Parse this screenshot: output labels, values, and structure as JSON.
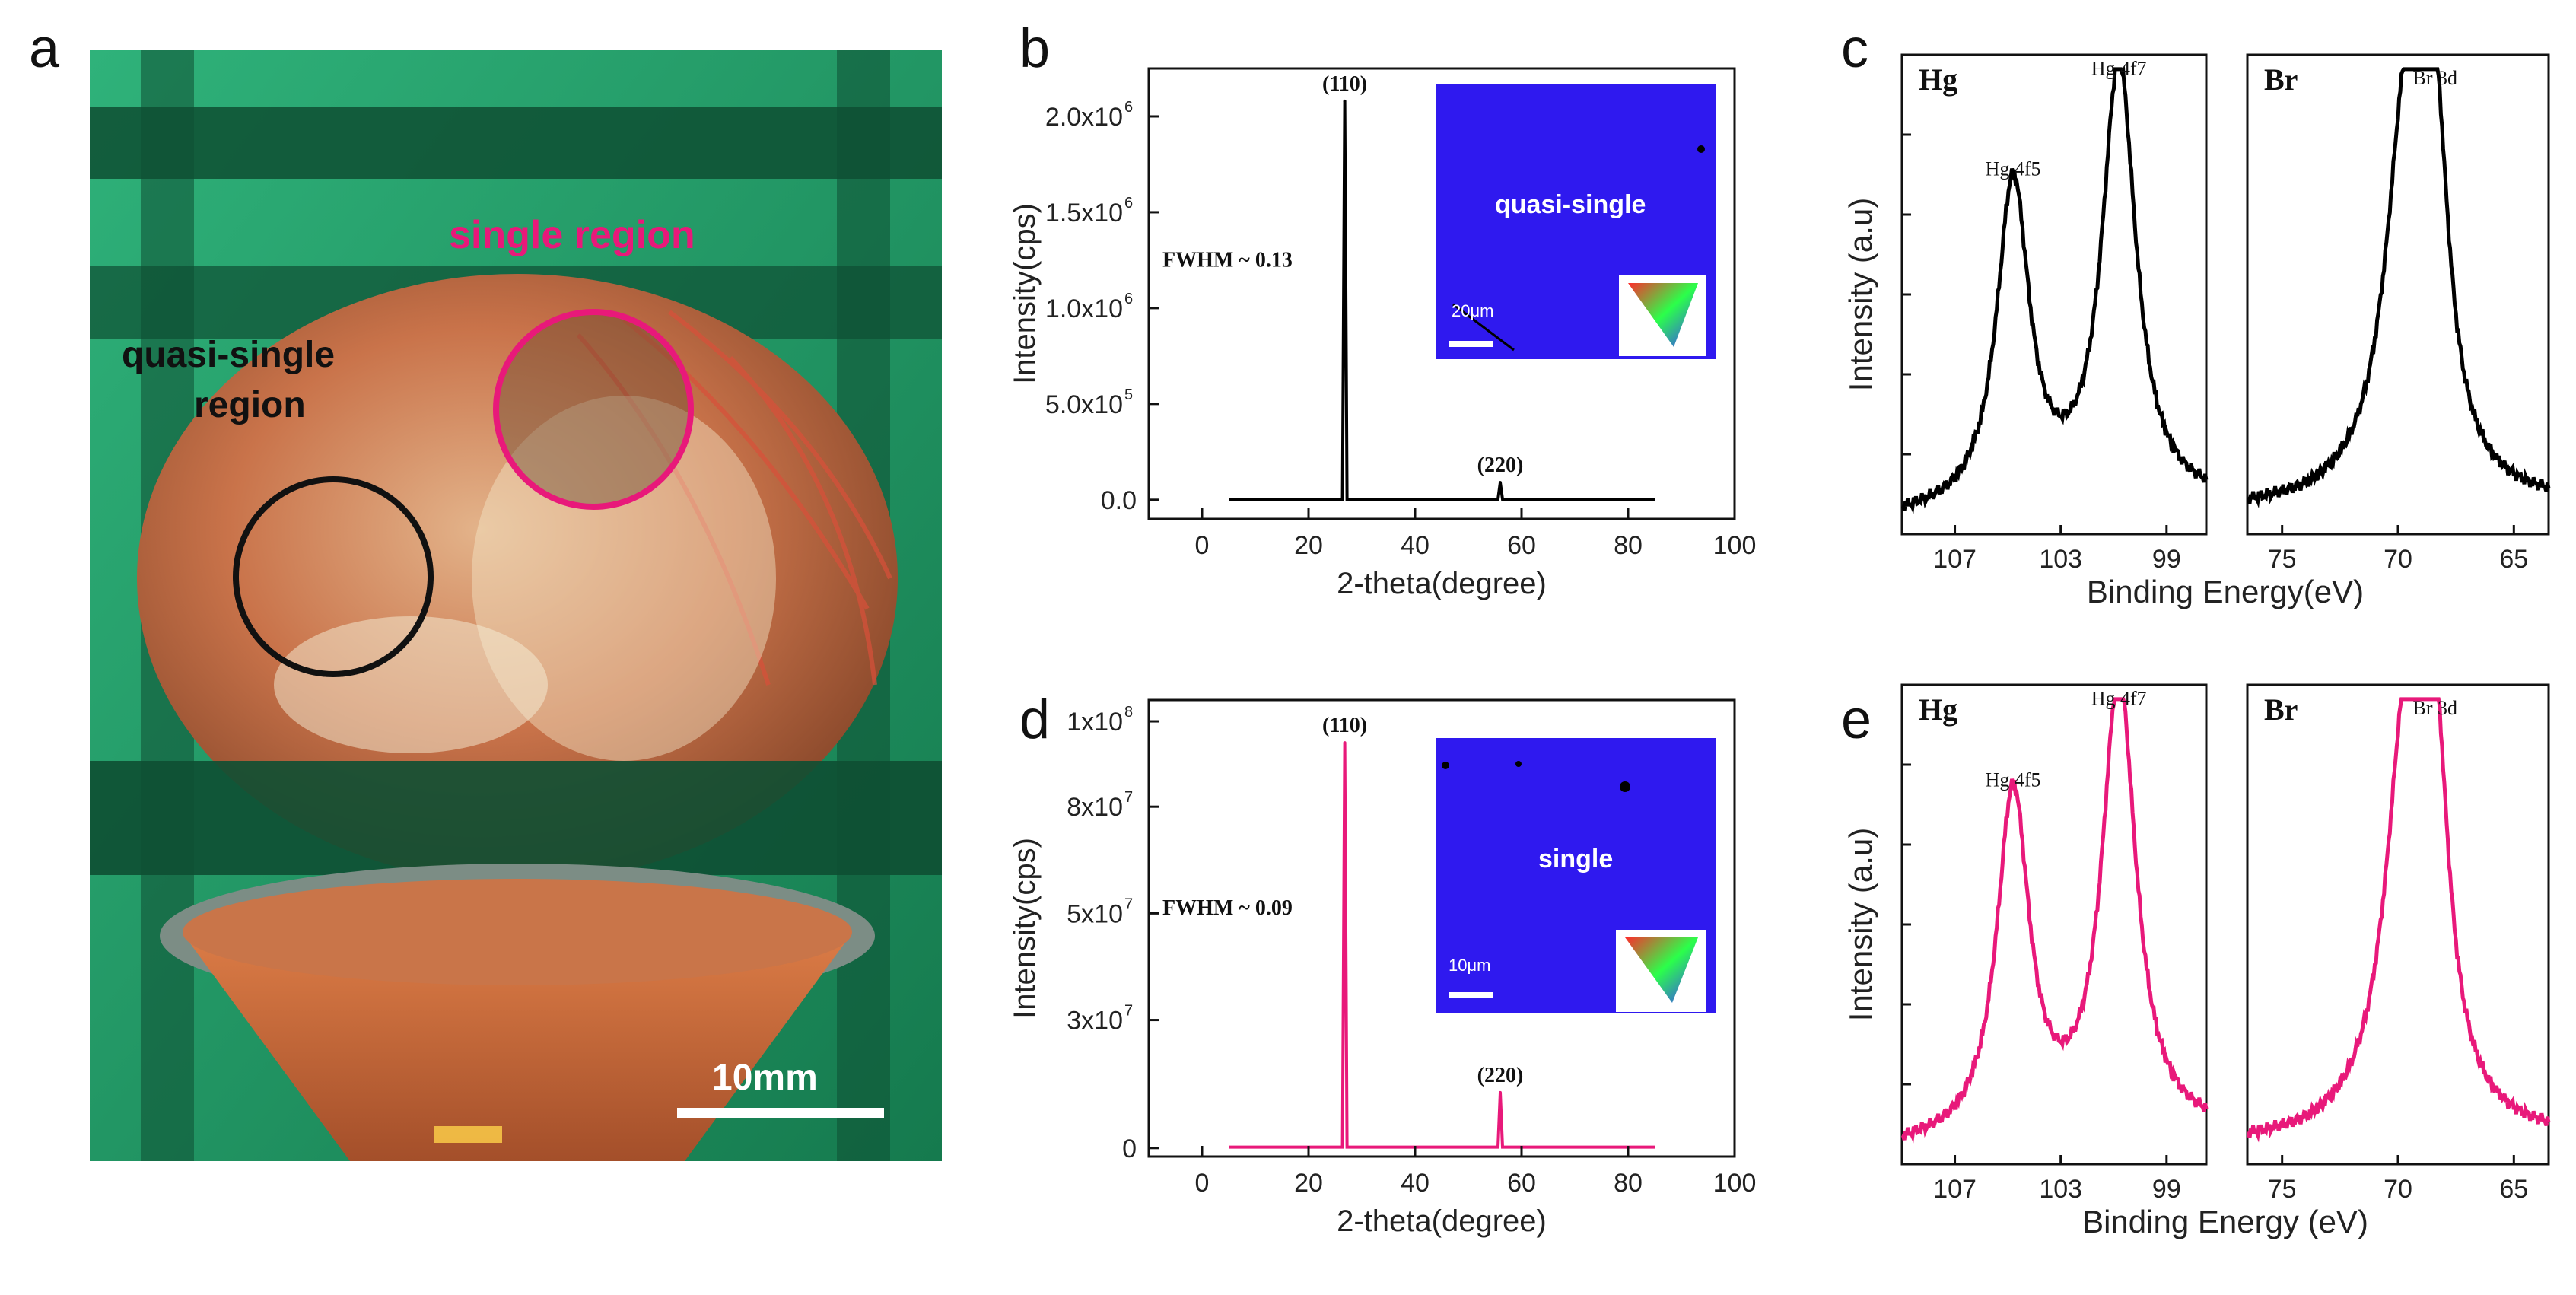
{
  "panel_letters": {
    "a": "a",
    "b": "b",
    "c": "c",
    "d": "d",
    "e": "e"
  },
  "photo": {
    "label_single": "single region",
    "label_quasi_line1": "quasi-single",
    "label_quasi_line2": "region",
    "scale_bar": "10mm",
    "colors": {
      "single": "#e8197a",
      "quasi": "#111111",
      "background": "#1f9a64",
      "dome": "#c9734a"
    }
  },
  "chart_data": [
    {
      "id": "b",
      "type": "line",
      "color": "#000000",
      "xlabel": "2-theta(degree)",
      "ylabel": "Intensity(cps)",
      "xlim": [
        -10,
        100
      ],
      "ylim": [
        -100000,
        2250000
      ],
      "x_ticks": [
        0,
        20,
        40,
        60,
        80,
        100
      ],
      "y_ticks": [
        {
          "value": 0,
          "base": "0.0",
          "exp": ""
        },
        {
          "value": 500000,
          "base": "5.0x10",
          "exp": "5"
        },
        {
          "value": 1000000,
          "base": "1.0x10",
          "exp": "6"
        },
        {
          "value": 1500000,
          "base": "1.5x10",
          "exp": "6"
        },
        {
          "value": 2000000,
          "base": "2.0x10",
          "exp": "6"
        }
      ],
      "x_range": [
        5,
        85
      ],
      "baseline": 3000,
      "peaks": [
        {
          "x": 26.8,
          "y": 2080000,
          "label": "(110)"
        },
        {
          "x": 56.0,
          "y": 90000,
          "label": "(220)"
        }
      ],
      "annotation": "FWHM ~ 0.13",
      "inset": {
        "label": "quasi-single",
        "scale": "20μm"
      }
    },
    {
      "id": "d",
      "type": "line",
      "color": "#e8197a",
      "xlabel": "2-theta(degree)",
      "ylabel": "Intensity(cps)",
      "xlim": [
        -10,
        100
      ],
      "ylim": [
        -2000000,
        105000000
      ],
      "x_ticks": [
        0,
        20,
        40,
        60,
        80,
        100
      ],
      "y_ticks": [
        {
          "value": 0,
          "base": "0",
          "exp": ""
        },
        {
          "value": 30000000,
          "base": "3x10",
          "exp": "7"
        },
        {
          "value": 55000000,
          "base": "5x10",
          "exp": "7"
        },
        {
          "value": 80000000,
          "base": "8x10",
          "exp": "7"
        },
        {
          "value": 100000000,
          "base": "1x10",
          "exp": "8"
        }
      ],
      "x_range": [
        5,
        85
      ],
      "baseline": 200000,
      "peaks": [
        {
          "x": 26.8,
          "y": 95000000,
          "label": "(110)"
        },
        {
          "x": 56.0,
          "y": 13000000,
          "label": "(220)"
        }
      ],
      "annotation": "FWHM ~ 0.09",
      "inset": {
        "label": "single",
        "scale": "10μm"
      }
    },
    {
      "id": "c",
      "type": "line",
      "color": "#000000",
      "ylabel": "Intensity (a.u)",
      "xlabel": "Binding Energy(eV)",
      "panels": [
        {
          "element": "Hg",
          "xlim": [
            109,
            97.5
          ],
          "x_ticks": [
            107,
            103,
            99
          ],
          "peaks": [
            {
              "x": 104.8,
              "h": 0.68,
              "w": 0.75,
              "label": "Hg 4f5"
            },
            {
              "x": 100.8,
              "h": 0.92,
              "w": 0.78,
              "label": "Hg 4f7"
            }
          ],
          "baseline": [
            0.03,
            0.06
          ]
        },
        {
          "element": "Br",
          "xlim": [
            76.5,
            63.5
          ],
          "x_ticks": [
            75,
            70,
            65
          ],
          "peaks": [
            {
              "x": 69.6,
              "h": 0.82,
              "w": 1.1,
              "label": ""
            },
            {
              "x": 68.4,
              "h": 0.6,
              "w": 0.7,
              "label": "Br 3d"
            }
          ],
          "baseline": [
            0.05,
            0.06
          ]
        }
      ]
    },
    {
      "id": "e",
      "type": "line",
      "color": "#e8197a",
      "ylabel": "Intensity (a.u)",
      "xlabel": "Binding Energy (eV)",
      "panels": [
        {
          "element": "Hg",
          "xlim": [
            109,
            97.5
          ],
          "x_ticks": [
            107,
            103,
            99
          ],
          "peaks": [
            {
              "x": 104.8,
              "h": 0.72,
              "w": 0.75,
              "label": "Hg 4f5"
            },
            {
              "x": 100.8,
              "h": 0.95,
              "w": 0.78,
              "label": "Hg 4f7"
            }
          ],
          "baseline": [
            0.03,
            0.06
          ]
        },
        {
          "element": "Br",
          "xlim": [
            76.5,
            63.5
          ],
          "x_ticks": [
            75,
            70,
            65
          ],
          "peaks": [
            {
              "x": 69.6,
              "h": 0.86,
              "w": 1.1,
              "label": ""
            },
            {
              "x": 68.4,
              "h": 0.62,
              "w": 0.7,
              "label": "Br 3d"
            }
          ],
          "baseline": [
            0.04,
            0.05
          ]
        }
      ]
    }
  ]
}
